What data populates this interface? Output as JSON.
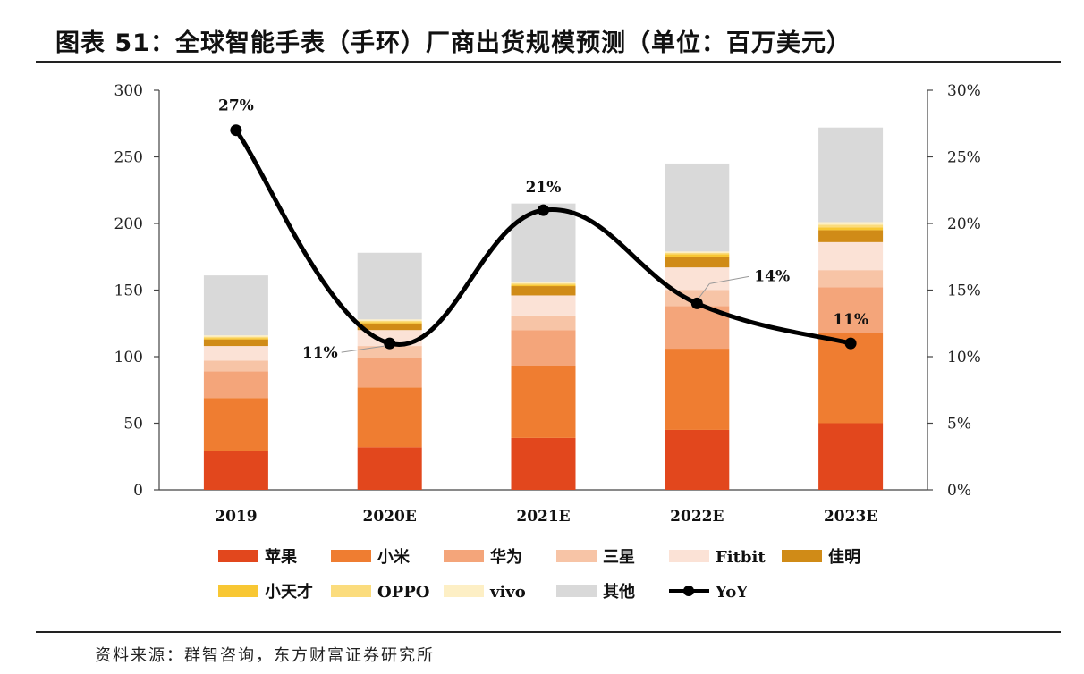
{
  "title": "图表 51：全球智能手表（手环）厂商出货规模预测（单位：百万美元）",
  "source": "资料来源：群智咨询，东方财富证券研究所",
  "chart_data": {
    "type": "bar",
    "stacked": true,
    "categories": [
      "2019",
      "2020E",
      "2021E",
      "2022E",
      "2023E"
    ],
    "ylim": [
      0,
      300
    ],
    "y_ticks": [
      "0",
      "50",
      "100",
      "150",
      "200",
      "250",
      "300"
    ],
    "y2lim": [
      0,
      0.3
    ],
    "y2_ticks": [
      "0%",
      "5%",
      "10%",
      "15%",
      "20%",
      "25%",
      "30%"
    ],
    "legend_position": "bottom",
    "series": [
      {
        "name": "苹果",
        "color": "#e2471d",
        "values": [
          29,
          32,
          39,
          45,
          50
        ]
      },
      {
        "name": "小米",
        "color": "#ef7d31",
        "values": [
          40,
          45,
          54,
          61,
          68
        ]
      },
      {
        "name": "华为",
        "color": "#f4a57a",
        "values": [
          20,
          22,
          27,
          32,
          34
        ]
      },
      {
        "name": "三星",
        "color": "#f7c4a6",
        "values": [
          8,
          9,
          11,
          12,
          13
        ]
      },
      {
        "name": "Fitbit",
        "color": "#fbe2d6",
        "values": [
          11,
          12,
          15,
          17,
          21
        ]
      },
      {
        "name": "佳明",
        "color": "#d08b17",
        "values": [
          5,
          5,
          7,
          8,
          9
        ]
      },
      {
        "name": "小天才",
        "color": "#f8c733",
        "values": [
          1,
          1,
          1,
          2,
          2
        ]
      },
      {
        "name": "OPPO",
        "color": "#fbdc7d",
        "values": [
          1,
          1,
          1,
          1,
          2
        ]
      },
      {
        "name": "vivo",
        "color": "#fdefc5",
        "values": [
          1,
          1,
          1,
          1,
          2
        ]
      },
      {
        "name": "其他",
        "color": "#d9d9d9",
        "values": [
          45,
          50,
          59,
          66,
          71
        ]
      }
    ],
    "line_series": {
      "name": "YoY",
      "color": "#000000",
      "values": [
        0.27,
        0.11,
        0.21,
        0.14,
        0.11
      ],
      "labels": [
        "27%",
        "11%",
        "21%",
        "14%",
        "11%"
      ]
    }
  }
}
